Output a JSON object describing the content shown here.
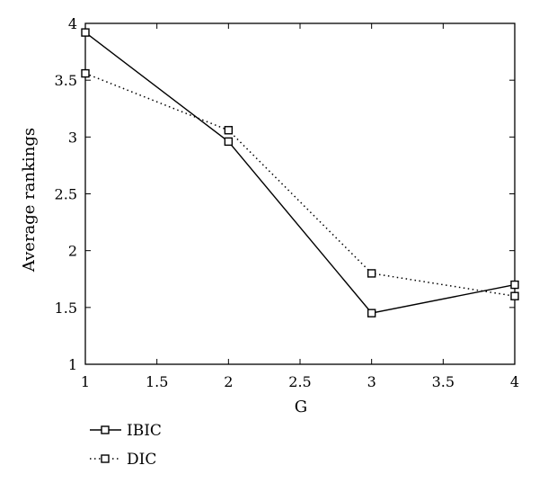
{
  "chart_data": {
    "type": "line",
    "xlabel": "G",
    "ylabel": "Average rankings",
    "xlim": [
      1,
      4
    ],
    "ylim": [
      1,
      4
    ],
    "xticks": [
      1,
      1.5,
      2,
      2.5,
      3,
      3.5,
      4
    ],
    "yticks": [
      1,
      1.5,
      2,
      2.5,
      3,
      3.5,
      4
    ],
    "x_tick_labels": [
      "1",
      "1.5",
      "2",
      "2.5",
      "3",
      "3.5",
      "4"
    ],
    "y_tick_labels": [
      "1",
      "1.5",
      "2",
      "2.5",
      "3",
      "3.5",
      "4"
    ],
    "legend_position": "bottom-left, outside plot",
    "grid": false,
    "x": [
      1,
      2,
      3,
      4
    ],
    "series": [
      {
        "name": "IBIC",
        "values": [
          3.92,
          2.96,
          1.45,
          1.7
        ],
        "line_style": "solid",
        "marker": "square",
        "color": "#000000"
      },
      {
        "name": "DIC",
        "values": [
          3.56,
          3.06,
          1.8,
          1.6
        ],
        "line_style": "dotted",
        "marker": "square",
        "color": "#000000"
      }
    ]
  }
}
